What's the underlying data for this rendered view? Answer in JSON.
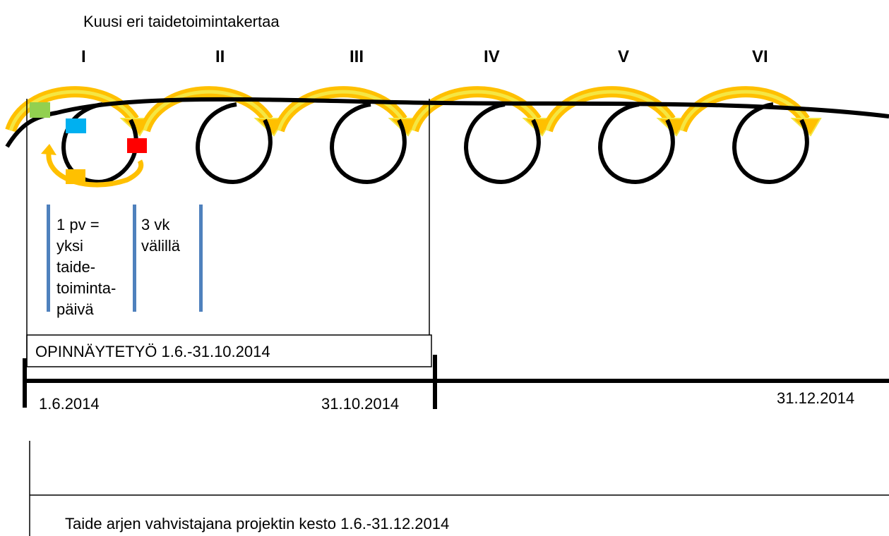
{
  "title": "Kuusi eri taidetoimintakertaa",
  "sessions": [
    "I",
    "II",
    "III",
    "IV",
    "V",
    "VI"
  ],
  "day_note": [
    "1 pv =",
    "yksi",
    "taide-",
    "toiminta-",
    "päivä"
  ],
  "gap_note": [
    "3 vk",
    "välillä"
  ],
  "thesis": "OPINNÄYTETYÖ 1.6.-31.10.2014",
  "dates": [
    "1.6.2014",
    "31.10.2014",
    "31.12.2014"
  ],
  "project": "Taide arjen vahvistajana projektin kesto 1.6.-31.12.2014"
}
